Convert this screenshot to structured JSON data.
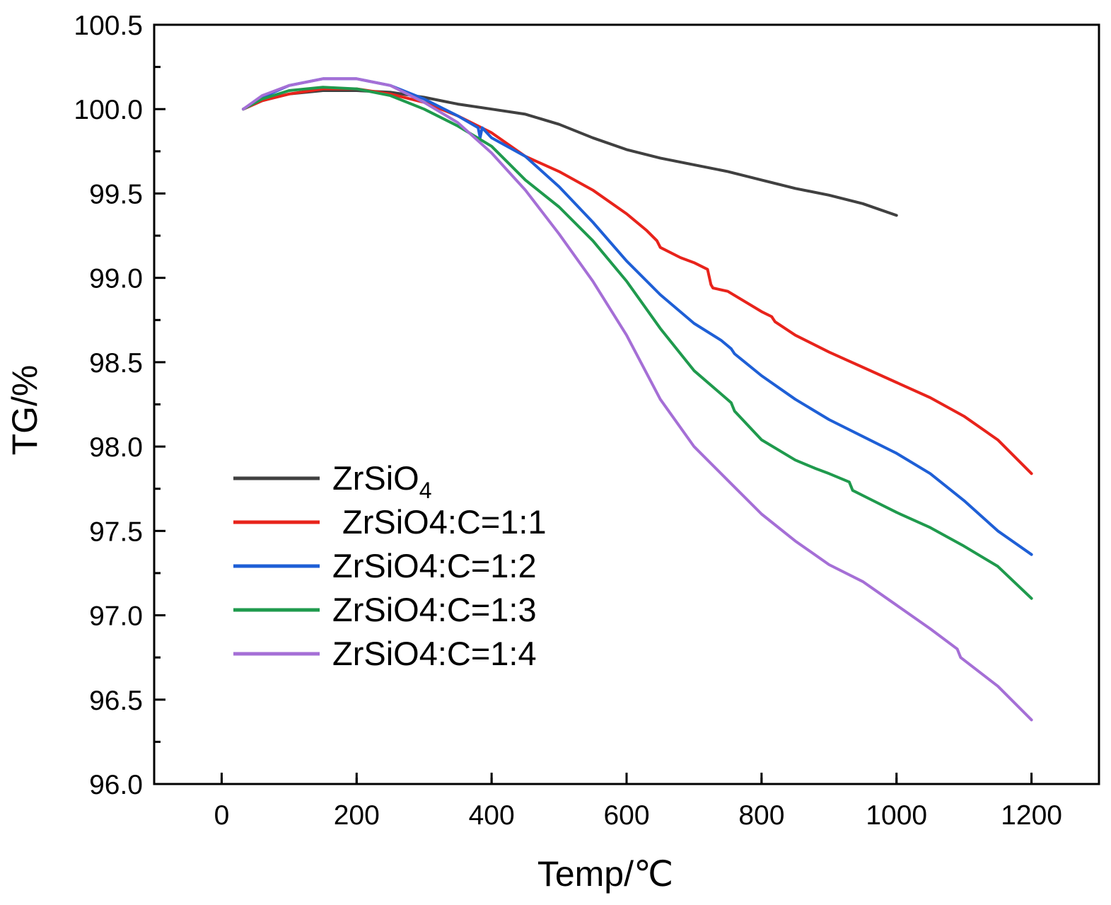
{
  "chart_data": {
    "type": "line",
    "xlabel": "Temp/℃",
    "ylabel": "TG/%",
    "xlim": [
      -100,
      1300
    ],
    "ylim": [
      96.0,
      100.5
    ],
    "xticks": [
      0,
      200,
      400,
      600,
      800,
      1000,
      1200
    ],
    "xtick_labels": [
      "0",
      "200",
      "400",
      "600",
      "800",
      "1000",
      "1200"
    ],
    "yticks": [
      96.0,
      96.5,
      97.0,
      97.5,
      98.0,
      98.5,
      99.0,
      99.5,
      100.0,
      100.5
    ],
    "ytick_labels": [
      "96.0",
      "96.5",
      "97.0",
      "97.5",
      "98.0",
      "98.5",
      "99.0",
      "99.5",
      "100.0",
      "100.5"
    ],
    "grid": false,
    "legend_position": "bottom-left",
    "series": [
      {
        "name": "ZrSiO4",
        "name_base": "ZrSiO",
        "name_sub": "4",
        "color": "#404040",
        "x": [
          32,
          60,
          100,
          150,
          200,
          250,
          300,
          350,
          400,
          450,
          500,
          550,
          600,
          650,
          700,
          750,
          800,
          850,
          900,
          950,
          1000
        ],
        "y": [
          100.0,
          100.05,
          100.09,
          100.11,
          100.11,
          100.1,
          100.07,
          100.03,
          100.0,
          99.97,
          99.91,
          99.83,
          99.76,
          99.71,
          99.67,
          99.63,
          99.58,
          99.53,
          99.49,
          99.44,
          99.37
        ]
      },
      {
        "name": "ZrSiO4:C=1:1",
        "color": "#e8231b",
        "x": [
          32,
          60,
          100,
          150,
          200,
          250,
          300,
          350,
          400,
          450,
          500,
          550,
          600,
          630,
          645,
          650,
          680,
          700,
          720,
          725,
          728,
          750,
          800,
          815,
          820,
          850,
          900,
          950,
          1000,
          1050,
          1100,
          1150,
          1200
        ],
        "y": [
          100.0,
          100.05,
          100.09,
          100.12,
          100.12,
          100.09,
          100.04,
          99.96,
          99.86,
          99.72,
          99.63,
          99.52,
          99.38,
          99.28,
          99.22,
          99.18,
          99.12,
          99.09,
          99.05,
          98.96,
          98.94,
          98.92,
          98.8,
          98.77,
          98.74,
          98.66,
          98.56,
          98.47,
          98.38,
          98.29,
          98.18,
          98.04,
          97.84
        ]
      },
      {
        "name": "ZrSiO4:C=1:2",
        "color": "#1e5fd6",
        "x": [
          32,
          60,
          100,
          150,
          200,
          250,
          300,
          350,
          380,
          383,
          386,
          400,
          450,
          500,
          550,
          600,
          650,
          700,
          740,
          755,
          760,
          800,
          850,
          900,
          950,
          1000,
          1050,
          1100,
          1150,
          1200
        ],
        "y": [
          100.0,
          100.07,
          100.14,
          100.18,
          100.18,
          100.14,
          100.06,
          99.96,
          99.89,
          99.83,
          99.89,
          99.83,
          99.72,
          99.54,
          99.33,
          99.1,
          98.9,
          98.73,
          98.63,
          98.58,
          98.55,
          98.42,
          98.28,
          98.16,
          98.06,
          97.96,
          97.84,
          97.68,
          97.5,
          97.36
        ]
      },
      {
        "name": "ZrSiO4:C=1:3",
        "color": "#1f9a4d",
        "x": [
          32,
          60,
          100,
          150,
          200,
          250,
          300,
          350,
          400,
          450,
          500,
          550,
          600,
          650,
          700,
          755,
          760,
          800,
          850,
          880,
          900,
          930,
          935,
          960,
          1000,
          1050,
          1100,
          1150,
          1200
        ],
        "y": [
          100.0,
          100.06,
          100.11,
          100.13,
          100.12,
          100.08,
          100.0,
          99.9,
          99.78,
          99.58,
          99.42,
          99.22,
          98.98,
          98.7,
          98.45,
          98.26,
          98.21,
          98.04,
          97.92,
          97.87,
          97.84,
          97.79,
          97.74,
          97.69,
          97.61,
          97.52,
          97.41,
          97.29,
          97.1
        ]
      },
      {
        "name": "ZrSiO4:C=1:4",
        "color": "#a56fd6",
        "x": [
          32,
          60,
          100,
          150,
          200,
          250,
          300,
          350,
          400,
          450,
          500,
          550,
          600,
          650,
          700,
          750,
          800,
          850,
          900,
          950,
          1000,
          1050,
          1090,
          1095,
          1150,
          1200
        ],
        "y": [
          100.0,
          100.08,
          100.14,
          100.18,
          100.18,
          100.14,
          100.04,
          99.92,
          99.74,
          99.52,
          99.26,
          98.98,
          98.66,
          98.28,
          98.0,
          97.8,
          97.6,
          97.44,
          97.3,
          97.2,
          97.06,
          96.92,
          96.8,
          96.75,
          96.58,
          96.38
        ]
      }
    ]
  }
}
